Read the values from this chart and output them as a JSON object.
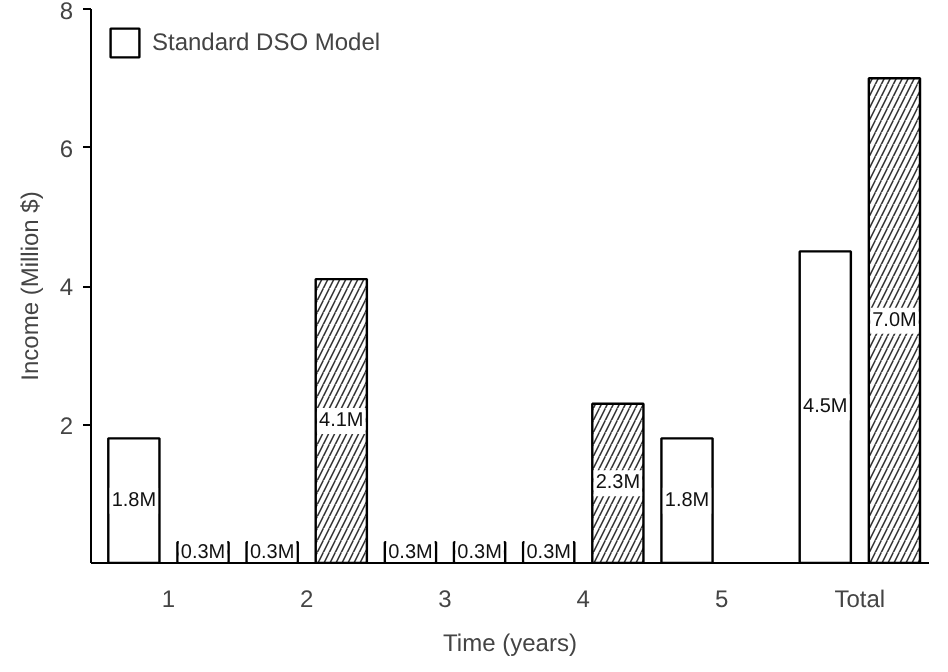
{
  "chart_data": {
    "type": "bar",
    "xlabel": "Time (years)",
    "ylabel": "Income (Million $)",
    "categories": [
      "1",
      "2",
      "3",
      "4",
      "5",
      "Total"
    ],
    "series": [
      {
        "name": "Standard DSO Model",
        "color": "#ffffff",
        "values": [
          1.8,
          0.3,
          0.3,
          0.3,
          1.8,
          4.5
        ],
        "value_labels": [
          "1.8M",
          "0.3M",
          "0.3M",
          "0.3M",
          "1.8M",
          "4.5M"
        ]
      },
      {
        "color": "#ffffff",
        "values": [
          0.3,
          4.1,
          0.3,
          2.3,
          null,
          7.0
        ],
        "value_labels": [
          "0.3M",
          "4.1M",
          "0.3M",
          "2.3M",
          null,
          "7.0M"
        ]
      }
    ],
    "ylim": [
      0,
      8
    ],
    "yticks": [
      2,
      4,
      6,
      8
    ],
    "grid": false,
    "legend": "top left"
  }
}
